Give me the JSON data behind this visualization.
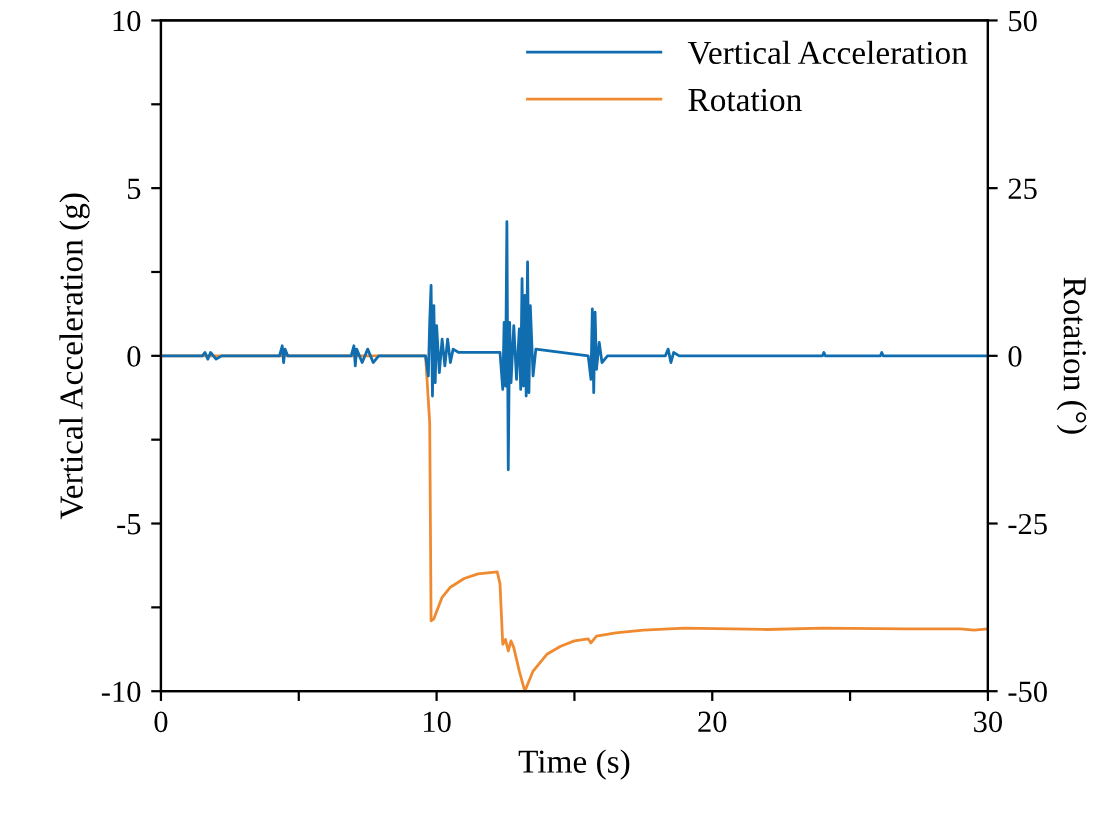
{
  "chart_data": {
    "type": "line",
    "xlabel": "Time (s)",
    "ylabel": "Vertical Acceleration (g)",
    "y2label": "Rotation (°)",
    "xlim": [
      0,
      30
    ],
    "xticks": [
      0,
      {
        "value": 5,
        "label": null
      },
      10,
      {
        "value": 15,
        "label": null
      },
      20,
      {
        "value": 25,
        "label": null
      },
      30
    ],
    "ylim": [
      -10,
      10
    ],
    "yticks": [
      -10,
      {
        "value": -7.5,
        "label": null
      },
      -5,
      {
        "value": -2.5,
        "label": null
      },
      0,
      {
        "value": 2.5,
        "label": null
      },
      5,
      {
        "value": 7.5,
        "label": null
      },
      10
    ],
    "y2lim": [
      -50,
      50
    ],
    "y2ticks": [
      -50,
      -25,
      0,
      25,
      50
    ],
    "legend": "top right",
    "grid": false,
    "series": [
      {
        "name": "Vertical Acceleration",
        "color": "#0f6db0",
        "axis": "y",
        "x": [
          0,
          1.5,
          1.6,
          1.7,
          1.8,
          2.0,
          2.2,
          4.3,
          4.4,
          4.45,
          4.5,
          4.6,
          6.9,
          7.0,
          7.05,
          7.1,
          7.3,
          7.5,
          7.7,
          7.9,
          9.6,
          9.7,
          9.75,
          9.8,
          9.85,
          9.9,
          9.95,
          10.0,
          10.1,
          10.2,
          10.3,
          10.4,
          10.5,
          10.6,
          10.8,
          11.0,
          12.3,
          12.4,
          12.45,
          12.5,
          12.55,
          12.6,
          12.65,
          12.7,
          12.8,
          12.9,
          13.0,
          13.05,
          13.1,
          13.15,
          13.2,
          13.25,
          13.3,
          13.35,
          13.4,
          13.5,
          13.6,
          15.5,
          15.6,
          15.65,
          15.7,
          15.75,
          15.8,
          15.9,
          16.0,
          16.2,
          18.3,
          18.4,
          18.5,
          18.6,
          18.8,
          24.0,
          24.05,
          24.1,
          26.1,
          26.15,
          26.2,
          30
        ],
        "values": [
          0,
          0,
          0.1,
          -0.1,
          0.1,
          -0.1,
          0,
          0,
          0.3,
          -0.2,
          0.2,
          0,
          0,
          0.3,
          -0.3,
          0.2,
          -0.2,
          0.2,
          -0.2,
          0,
          0,
          -0.6,
          1.0,
          2.1,
          -1.2,
          1.5,
          -0.8,
          0.9,
          -0.5,
          0.5,
          -0.3,
          0.5,
          -0.2,
          0.2,
          0.1,
          0.1,
          0.1,
          -1.0,
          1.0,
          -0.9,
          4.0,
          -3.4,
          1.0,
          -0.8,
          0.9,
          -0.7,
          0.8,
          -1.0,
          2.3,
          -0.9,
          1.8,
          -1.2,
          2.8,
          -1.1,
          1.5,
          -0.6,
          0.2,
          0,
          -0.7,
          1.4,
          -1.1,
          1.3,
          -0.4,
          0.4,
          -0.2,
          0,
          0,
          0.2,
          -0.2,
          0.1,
          0,
          0,
          0.1,
          0,
          0,
          0.1,
          0,
          0
        ]
      },
      {
        "name": "Rotation",
        "color": "#f08a30",
        "axis": "y2",
        "x": [
          0,
          9.6,
          9.75,
          9.8,
          9.9,
          10.2,
          10.5,
          11.0,
          11.5,
          12.2,
          12.3,
          12.4,
          12.5,
          12.6,
          12.7,
          12.8,
          13.0,
          13.2,
          13.5,
          14.0,
          14.5,
          15.0,
          15.5,
          15.6,
          15.8,
          16.5,
          17.5,
          19.0,
          22.0,
          24.0,
          27.0,
          29.0,
          29.5,
          30
        ],
        "values": [
          0,
          0,
          -10,
          -39.5,
          -39.2,
          -36,
          -34.5,
          -33.2,
          -32.5,
          -32.2,
          -34,
          -43,
          -42.3,
          -44,
          -42.5,
          -43.5,
          -47,
          -50,
          -47,
          -44.5,
          -43.3,
          -42.5,
          -42.2,
          -42.8,
          -41.8,
          -41.3,
          -40.9,
          -40.6,
          -40.8,
          -40.6,
          -40.7,
          -40.7,
          -40.9,
          -40.7
        ]
      }
    ]
  }
}
